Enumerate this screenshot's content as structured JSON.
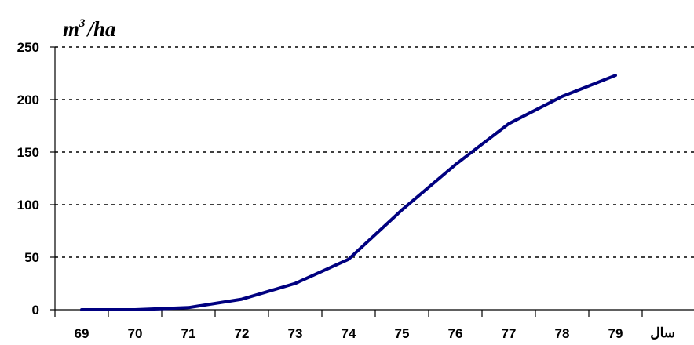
{
  "chart_data": {
    "type": "line",
    "title": "",
    "ylabel": {
      "base": "m",
      "exponent": "3",
      "rest": "/ha"
    },
    "xlabel": "سال",
    "x": [
      "69",
      "70",
      "71",
      "72",
      "73",
      "74",
      "75",
      "76",
      "77",
      "78",
      "79"
    ],
    "ylim": [
      0,
      250
    ],
    "yticks": [
      0,
      50,
      100,
      150,
      200,
      250
    ],
    "grid": "horizontal-dashed",
    "legend": "none",
    "series": [
      {
        "values": [
          0,
          0,
          2,
          10,
          25,
          48,
          95,
          138,
          177,
          203,
          223
        ],
        "color": "#000080"
      }
    ]
  }
}
